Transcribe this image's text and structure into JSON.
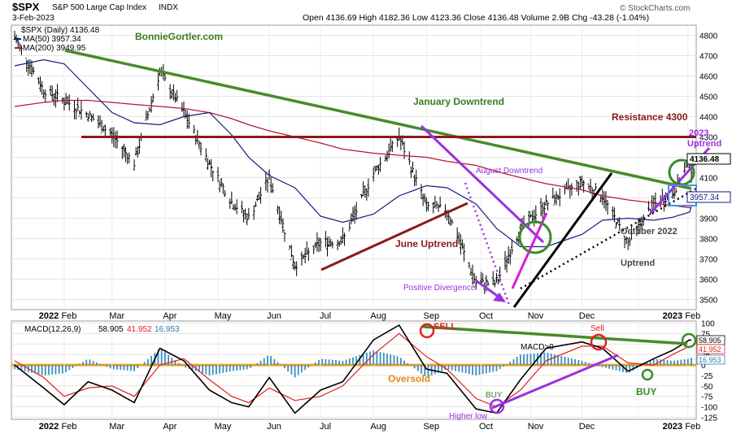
{
  "header": {
    "symbol": "$SPX",
    "name": "S&P 500 Large Cap Index",
    "exchange": "INDX",
    "date": "3-Feb-2023",
    "ohlc": "Open 4136.69  High 4182.36  Low 4123.36  Close 4136.48  Volume 2.9B  Chg -43.28 (-1.04%)",
    "source": "© StockCharts.com"
  },
  "legend": {
    "price": "$SPX (Daily) 4136.48",
    "ma50": "MA(50) 3957.34",
    "ma200": "MA(200) 3949.95",
    "colors": {
      "price": "#000000",
      "ma50": "#1a1a80",
      "ma200": "#b01c2e"
    }
  },
  "annotations": {
    "site": "BonnieGortler.com",
    "jan_downtrend": "January Downtrend",
    "resistance": "Resistance 4300",
    "uptrend_2023_line1": "2023",
    "uptrend_2023_line2": "Uptrend",
    "august_downtrend": "August Downtrend",
    "june_uptrend": "June Uptrend",
    "positive_divergence": "Positive Divergence",
    "oct_uptrend_line1": "October 2022",
    "oct_uptrend_line2": "Uptrend"
  },
  "macd_annotations": {
    "sell1": "SELL",
    "sell2": "Sell",
    "macd0": "MACD>0",
    "oversold": "Oversold",
    "buy1": "BUY",
    "buy2": "BUY",
    "higher_low": "Higher low"
  },
  "macd_legend": {
    "label": "MACD(12,26,9)",
    "macd": "58.905",
    "signal": "41.952",
    "hist": "16.953"
  },
  "price_labels": {
    "last": "4136.48",
    "ma50": "3957.34"
  },
  "chart_data": [
    {
      "type": "line",
      "title": "",
      "x": [
        "2022-01-03",
        "2022-01-20",
        "2022-02-01",
        "2022-02-15",
        "2022-03-01",
        "2022-03-14",
        "2022-03-29",
        "2022-04-12",
        "2022-04-27",
        "2022-05-10",
        "2022-05-20",
        "2022-06-01",
        "2022-06-16",
        "2022-07-01",
        "2022-07-14",
        "2022-08-01",
        "2022-08-16",
        "2022-09-01",
        "2022-09-13",
        "2022-09-30",
        "2022-10-12",
        "2022-10-26",
        "2022-11-10",
        "2022-12-01",
        "2022-12-13",
        "2022-12-28",
        "2023-01-12",
        "2023-01-23",
        "2023-02-02",
        "2023-02-03"
      ],
      "series": [
        {
          "values": [
            4790,
            4530,
            4480,
            4410,
            4310,
            4170,
            4620,
            4420,
            4170,
            3980,
            3900,
            4100,
            3666,
            3780,
            3790,
            4120,
            4300,
            3960,
            3940,
            3580,
            3580,
            3850,
            3970,
            4080,
            4010,
            3780,
            3970,
            4020,
            4180,
            4136
          ]
        },
        {
          "values": [
            4650,
            4680,
            4660,
            4540,
            4420,
            4370,
            4360,
            4400,
            4420,
            4310,
            4200,
            4110,
            4050,
            3910,
            3880,
            3920,
            4010,
            4060,
            4050,
            3970,
            3850,
            3760,
            3760,
            3820,
            3890,
            3900,
            3890,
            3905,
            3930,
            3957
          ]
        },
        {
          "values": [
            4450,
            4470,
            4480,
            4480,
            4470,
            4460,
            4450,
            4440,
            4420,
            4390,
            4360,
            4330,
            4300,
            4270,
            4240,
            4220,
            4210,
            4200,
            4180,
            4160,
            4130,
            4100,
            4070,
            4040,
            4010,
            3990,
            3975,
            3962,
            3952,
            3950
          ]
        }
      ],
      "ylim": [
        3450,
        4850
      ],
      "yticks": [
        3500,
        3600,
        3700,
        3800,
        3900,
        4000,
        4100,
        4200,
        4300,
        4400,
        4500,
        4600,
        4700,
        4800
      ],
      "resistance_level": 4300,
      "xticks": [
        "2022",
        "Feb",
        "Mar",
        "Apr",
        "May",
        "Jun",
        "Jul",
        "Aug",
        "Sep",
        "Oct",
        "Nov",
        "Dec",
        "2023",
        "Feb"
      ],
      "grid": true
    },
    {
      "type": "line",
      "title": "MACD(12,26,9)",
      "x": [
        "2022-01-03",
        "2022-01-20",
        "2022-02-01",
        "2022-02-15",
        "2022-03-01",
        "2022-03-14",
        "2022-03-29",
        "2022-04-12",
        "2022-04-27",
        "2022-05-10",
        "2022-05-20",
        "2022-06-01",
        "2022-06-16",
        "2022-07-01",
        "2022-07-14",
        "2022-08-01",
        "2022-08-16",
        "2022-09-01",
        "2022-09-13",
        "2022-09-30",
        "2022-10-12",
        "2022-10-26",
        "2022-11-10",
        "2022-12-01",
        "2022-12-13",
        "2022-12-28",
        "2023-01-12",
        "2023-01-23",
        "2023-02-02",
        "2023-02-03"
      ],
      "series": [
        {
          "name": "MACD",
          "values": [
            0,
            -55,
            -95,
            -40,
            -60,
            -90,
            40,
            10,
            -60,
            -90,
            -100,
            -30,
            -115,
            -60,
            -40,
            60,
            95,
            -10,
            -20,
            -105,
            -115,
            -35,
            40,
            55,
            40,
            -15,
            15,
            35,
            60,
            58.9
          ]
        },
        {
          "name": "Signal",
          "values": [
            10,
            -30,
            -75,
            -55,
            -50,
            -75,
            0,
            15,
            -35,
            -75,
            -90,
            -55,
            -85,
            -75,
            -50,
            25,
            75,
            20,
            -10,
            -80,
            -100,
            -60,
            10,
            45,
            45,
            5,
            0,
            25,
            45,
            42
          ]
        },
        {
          "name": "Histogram",
          "values": [
            -10,
            -25,
            -20,
            15,
            -10,
            -15,
            40,
            -5,
            -25,
            -15,
            -10,
            25,
            -30,
            15,
            10,
            35,
            20,
            -30,
            -10,
            -25,
            -15,
            25,
            30,
            10,
            -5,
            -20,
            15,
            10,
            15,
            17
          ]
        }
      ],
      "ylim": [
        -130,
        105
      ],
      "yticks": [
        100,
        75,
        50,
        25,
        0,
        -25,
        -50,
        -75,
        -100,
        -125
      ],
      "zero_line": 0,
      "xticks": [
        "2022",
        "Feb",
        "Mar",
        "Apr",
        "May",
        "Jun",
        "Jul",
        "Aug",
        "Sep",
        "Oct",
        "Nov",
        "Dec",
        "2023",
        "Feb"
      ]
    }
  ]
}
